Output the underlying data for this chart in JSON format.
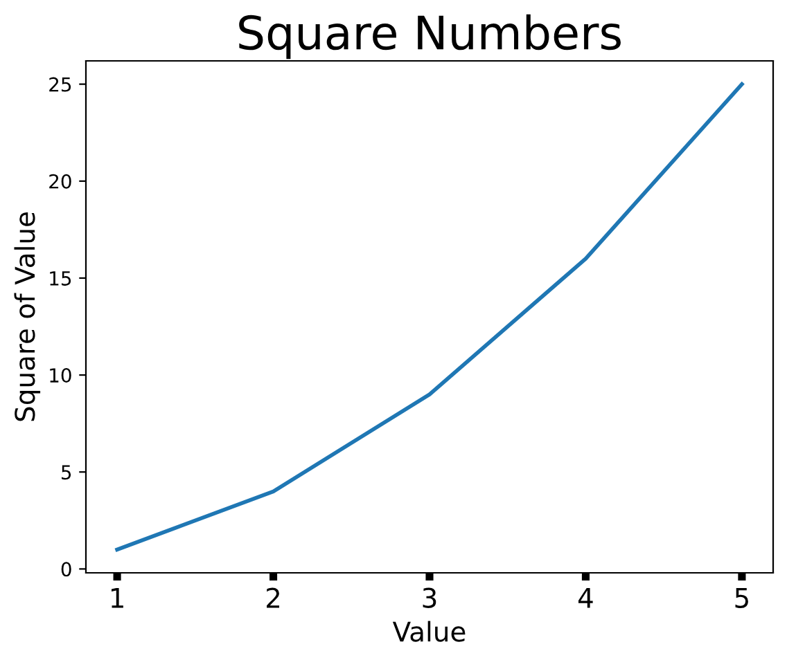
{
  "chart_data": {
    "type": "line",
    "title": "Square Numbers",
    "xlabel": "Value",
    "ylabel": "Square of Value",
    "x": [
      1,
      2,
      3,
      4,
      5
    ],
    "series": [
      {
        "color": "#1f77b4",
        "values": [
          1,
          4,
          9,
          16,
          25
        ]
      }
    ],
    "xlim": [
      0.8,
      5.2
    ],
    "ylim": [
      -0.2,
      26.2
    ],
    "xticks": [
      1,
      2,
      3,
      4,
      5
    ],
    "yticks": [
      0,
      5,
      10,
      15,
      20,
      25
    ],
    "grid": false,
    "marker": "none",
    "line_style": "solid"
  }
}
